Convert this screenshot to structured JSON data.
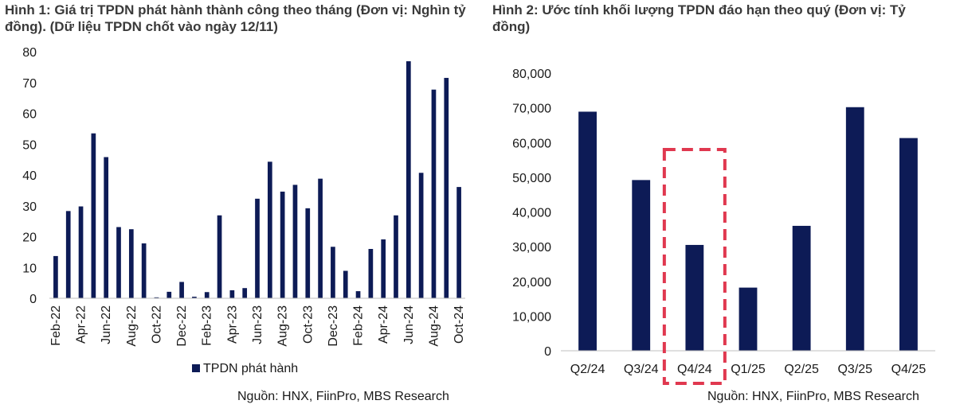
{
  "chart_data": [
    {
      "type": "bar",
      "title": "Hình 1: Giá trị TPDN phát hành thành công theo tháng (Đơn vị: Nghìn tỷ đồng). (Dữ liệu TPDN chốt vào ngày 12/11)",
      "source": "Nguồn: HNX, FiinPro, MBS Research",
      "categories": [
        "Feb-22",
        "Mar-22",
        "Apr-22",
        "May-22",
        "Jun-22",
        "Jul-22",
        "Aug-22",
        "Sep-22",
        "Oct-22",
        "Nov-22",
        "Dec-22",
        "Jan-23",
        "Feb-23",
        "Mar-23",
        "Apr-23",
        "May-23",
        "Jun-23",
        "Jul-23",
        "Aug-23",
        "Sep-23",
        "Oct-23",
        "Nov-23",
        "Dec-23",
        "Jan-24",
        "Feb-24",
        "Mar-24",
        "Apr-24",
        "May-24",
        "Jun-24",
        "Jul-24",
        "Aug-24",
        "Sep-24",
        "Oct-24"
      ],
      "x_tick_labels": [
        "Feb-22",
        "Apr-22",
        "Jun-22",
        "Aug-22",
        "Oct-22",
        "Dec-22",
        "Feb-23",
        "Apr-23",
        "Jun-23",
        "Aug-23",
        "Oct-23",
        "Dec-23",
        "Feb-24",
        "Apr-24",
        "Jun-24",
        "Aug-24",
        "Oct-24"
      ],
      "series": [
        {
          "name": "TPDN phát hành",
          "values": [
            13.7,
            28.3,
            29.8,
            53.5,
            45.8,
            23.1,
            22.4,
            17.8,
            0.3,
            2.1,
            5.3,
            0.5,
            2.0,
            26.9,
            2.6,
            3.3,
            32.3,
            44.3,
            34.6,
            36.8,
            29.2,
            38.8,
            16.7,
            8.9,
            2.3,
            16.0,
            19.1,
            26.9,
            76.9,
            40.7,
            67.7,
            71.5,
            36.1
          ],
          "color": "#0d1b56"
        }
      ],
      "ylim": [
        0,
        80
      ],
      "y_ticks": [
        0,
        10,
        20,
        30,
        40,
        50,
        60,
        70,
        80
      ],
      "grid": false,
      "legend": "bottom"
    },
    {
      "type": "bar",
      "title": "Hình 2: Ước tính khối lượng TPDN đáo hạn theo quý (Đơn vị: Tỷ đồng)",
      "source": "Nguồn: HNX, FiinPro, MBS Research",
      "categories": [
        "Q2/24",
        "Q3/24",
        "Q4/24",
        "Q1/25",
        "Q2/25",
        "Q3/25",
        "Q4/25"
      ],
      "values": [
        68900,
        49200,
        30500,
        18200,
        36000,
        70200,
        61300
      ],
      "y_tick_labels": [
        "0",
        "10,000",
        "20,000",
        "30,000",
        "40,000",
        "50,000",
        "60,000",
        "70,000",
        "80,000"
      ],
      "ylim": [
        0,
        80000
      ],
      "color": "#0d1b56",
      "highlight": {
        "category": "Q4/24",
        "style": "dashed-box",
        "color": "#e0384f"
      },
      "grid": false,
      "legend": "none"
    }
  ]
}
